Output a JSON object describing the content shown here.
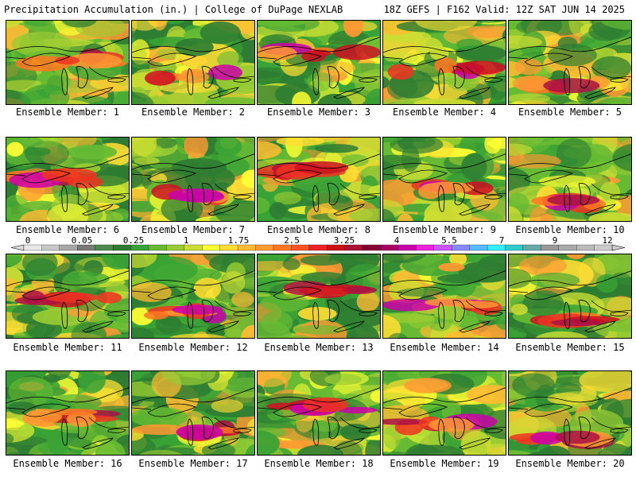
{
  "header": {
    "left": "Precipitation Accumulation (in.) | College of DuPage NEXLAB",
    "right": "18Z GEFS | F162 Valid: 12Z SAT JUN 14 2025"
  },
  "colorbar": {
    "tick_labels": [
      "0",
      "0.05",
      "0.25",
      "1",
      "1.75",
      "2.5",
      "3.25",
      "4",
      "5.5",
      "7",
      "9",
      "12"
    ],
    "colors": [
      "#e8e8e8",
      "#c8c8c8",
      "#a8a8a8",
      "#7a7a7a",
      "#4a8a4a",
      "#2e7d32",
      "#3aa335",
      "#66bb33",
      "#99cc33",
      "#ccdd33",
      "#ffff33",
      "#ffdd33",
      "#ffbb33",
      "#ff9933",
      "#ff7722",
      "#ff5522",
      "#ee2222",
      "#cc1111",
      "#aa1133",
      "#880033",
      "#aa0066",
      "#cc00aa",
      "#ee22dd",
      "#cc55ff",
      "#8888ff",
      "#55bbff",
      "#33eeff",
      "#33cccc",
      "#66aaaa",
      "#999999",
      "#aaaaaa",
      "#bbbbbb",
      "#cccccc"
    ]
  },
  "panels": [
    {
      "label": "Ensemble Member: 1"
    },
    {
      "label": "Ensemble Member: 2"
    },
    {
      "label": "Ensemble Member: 3"
    },
    {
      "label": "Ensemble Member: 4"
    },
    {
      "label": "Ensemble Member: 5"
    },
    {
      "label": "Ensemble Member: 6"
    },
    {
      "label": "Ensemble Member: 7"
    },
    {
      "label": "Ensemble Member: 8"
    },
    {
      "label": "Ensemble Member: 9"
    },
    {
      "label": "Ensemble Member: 10"
    },
    {
      "label": "Ensemble Member: 11"
    },
    {
      "label": "Ensemble Member: 12"
    },
    {
      "label": "Ensemble Member: 13"
    },
    {
      "label": "Ensemble Member: 14"
    },
    {
      "label": "Ensemble Member: 15"
    },
    {
      "label": "Ensemble Member: 16"
    },
    {
      "label": "Ensemble Member: 17"
    },
    {
      "label": "Ensemble Member: 18"
    },
    {
      "label": "Ensemble Member: 19"
    },
    {
      "label": "Ensemble Member: 20"
    }
  ]
}
